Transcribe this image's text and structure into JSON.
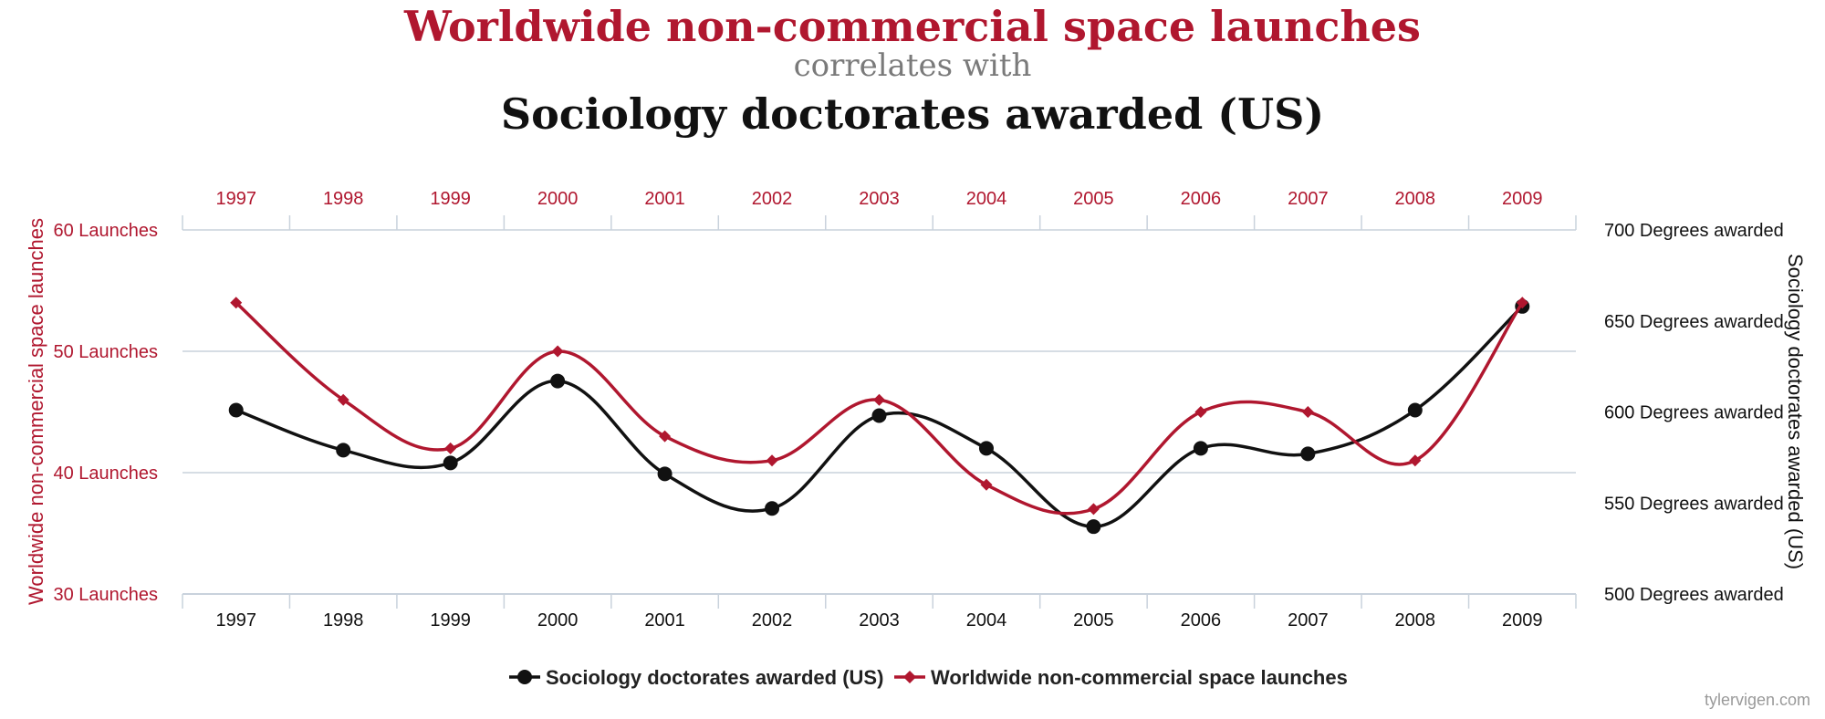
{
  "titles": {
    "series_a": "Worldwide non-commercial space launches",
    "connector": "correlates with",
    "series_b": "Sociology doctorates awarded (US)"
  },
  "watermark": "tylervigen.com",
  "colors": {
    "launches": "#b0172f",
    "doctorates": "#111111",
    "grid": "#c9d2dc"
  },
  "chart_data": {
    "type": "line",
    "x": [
      "1997",
      "1998",
      "1999",
      "2000",
      "2001",
      "2002",
      "2003",
      "2004",
      "2005",
      "2006",
      "2007",
      "2008",
      "2009"
    ],
    "series": [
      {
        "name": "Sociology doctorates awarded (US)",
        "axis": "right",
        "marker": "circle",
        "values": [
          601,
          579,
          572,
          617,
          566,
          547,
          598,
          580,
          537,
          580,
          577,
          601,
          658
        ]
      },
      {
        "name": "Worldwide non-commercial space launches",
        "axis": "left",
        "marker": "diamond",
        "values": [
          54,
          46,
          42,
          50,
          43,
          41,
          46,
          39,
          37,
          45,
          45,
          41,
          54
        ]
      }
    ],
    "left_axis": {
      "label": "Worldwide non-commercial space launches",
      "range": [
        30,
        60
      ],
      "ticks": [
        "30 Launches",
        "40 Launches",
        "50 Launches",
        "60 Launches"
      ]
    },
    "right_axis": {
      "label": "Sociology doctorates awarded (US)",
      "range": [
        500,
        700
      ],
      "ticks": [
        "500 Degrees awarded",
        "550 Degrees awarded",
        "600 Degrees awarded",
        "650 Degrees awarded",
        "700 Degrees awarded"
      ]
    },
    "legend": {
      "position": "bottom-center",
      "items": [
        "Sociology doctorates awarded (US)",
        "Worldwide non-commercial space launches"
      ]
    }
  }
}
